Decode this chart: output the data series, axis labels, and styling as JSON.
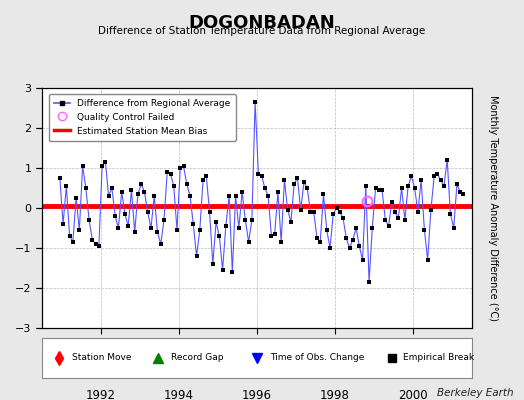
{
  "title": "DOGONBADAN",
  "subtitle": "Difference of Station Temperature Data from Regional Average",
  "ylabel": "Monthly Temperature Anomaly Difference (°C)",
  "credit": "Berkeley Earth",
  "xlim": [
    1990.5,
    2001.5
  ],
  "ylim": [
    -3,
    3
  ],
  "yticks": [
    -3,
    -2,
    -1,
    0,
    1,
    2,
    3
  ],
  "xticks": [
    1992,
    1994,
    1996,
    1998,
    2000
  ],
  "bias_value": 0.05,
  "line_color": "#5555ff",
  "marker_color": "#000000",
  "bias_color": "#ff0000",
  "bg_color": "#e8e8e8",
  "plot_bg_color": "#ffffff",
  "qc_fail_color": "#ff66ff",
  "qc_fail_x": 1998.83,
  "qc_fail_y": 0.18,
  "time_values": [
    1990.958,
    1991.042,
    1991.125,
    1991.208,
    1991.292,
    1991.375,
    1991.458,
    1991.542,
    1991.625,
    1991.708,
    1991.792,
    1991.875,
    1991.958,
    1992.042,
    1992.125,
    1992.208,
    1992.292,
    1992.375,
    1992.458,
    1992.542,
    1992.625,
    1992.708,
    1992.792,
    1992.875,
    1992.958,
    1993.042,
    1993.125,
    1993.208,
    1993.292,
    1993.375,
    1993.458,
    1993.542,
    1993.625,
    1993.708,
    1993.792,
    1993.875,
    1993.958,
    1994.042,
    1994.125,
    1994.208,
    1994.292,
    1994.375,
    1994.458,
    1994.542,
    1994.625,
    1994.708,
    1994.792,
    1994.875,
    1994.958,
    1995.042,
    1995.125,
    1995.208,
    1995.292,
    1995.375,
    1995.458,
    1995.542,
    1995.625,
    1995.708,
    1995.792,
    1995.875,
    1995.958,
    1996.042,
    1996.125,
    1996.208,
    1996.292,
    1996.375,
    1996.458,
    1996.542,
    1996.625,
    1996.708,
    1996.792,
    1996.875,
    1996.958,
    1997.042,
    1997.125,
    1997.208,
    1997.292,
    1997.375,
    1997.458,
    1997.542,
    1997.625,
    1997.708,
    1997.792,
    1997.875,
    1997.958,
    1998.042,
    1998.125,
    1998.208,
    1998.292,
    1998.375,
    1998.458,
    1998.542,
    1998.625,
    1998.708,
    1998.792,
    1998.875,
    1998.958,
    1999.042,
    1999.125,
    1999.208,
    1999.292,
    1999.375,
    1999.458,
    1999.542,
    1999.625,
    1999.708,
    1999.792,
    1999.875,
    1999.958,
    2000.042,
    2000.125,
    2000.208,
    2000.292,
    2000.375,
    2000.458,
    2000.542,
    2000.625,
    2000.708,
    2000.792,
    2000.875,
    2000.958,
    2001.042,
    2001.125,
    2001.208,
    2001.292
  ],
  "data_values": [
    0.75,
    -0.4,
    0.55,
    -0.7,
    -0.85,
    0.25,
    -0.55,
    1.05,
    0.5,
    -0.3,
    -0.8,
    -0.9,
    -0.95,
    1.05,
    1.15,
    0.3,
    0.5,
    -0.2,
    -0.5,
    0.4,
    -0.15,
    -0.45,
    0.45,
    -0.6,
    0.35,
    0.6,
    0.4,
    -0.1,
    -0.5,
    0.3,
    -0.6,
    -0.9,
    -0.3,
    0.9,
    0.85,
    0.55,
    -0.55,
    1.0,
    1.05,
    0.6,
    0.3,
    -0.4,
    -1.2,
    -0.55,
    0.7,
    0.8,
    -0.1,
    -1.4,
    -0.35,
    -0.7,
    -1.55,
    -0.45,
    0.3,
    -1.6,
    0.3,
    -0.5,
    0.4,
    -0.3,
    -0.85,
    -0.3,
    2.65,
    0.85,
    0.8,
    0.5,
    0.3,
    -0.7,
    -0.65,
    0.4,
    -0.85,
    0.7,
    -0.05,
    -0.35,
    0.6,
    0.75,
    -0.05,
    0.65,
    0.5,
    -0.1,
    -0.1,
    -0.75,
    -0.85,
    0.35,
    -0.55,
    -1.0,
    -0.15,
    0.0,
    -0.1,
    -0.25,
    -0.75,
    -1.0,
    -0.8,
    -0.5,
    -0.95,
    -1.3,
    0.55,
    -1.85,
    -0.5,
    0.5,
    0.45,
    0.45,
    -0.3,
    -0.45,
    0.15,
    -0.1,
    -0.25,
    0.5,
    -0.3,
    0.55,
    0.8,
    0.5,
    -0.1,
    0.7,
    -0.55,
    -1.3,
    -0.05,
    0.8,
    0.85,
    0.7,
    0.55,
    1.2,
    -0.15,
    -0.5,
    0.6,
    0.4,
    0.35
  ]
}
